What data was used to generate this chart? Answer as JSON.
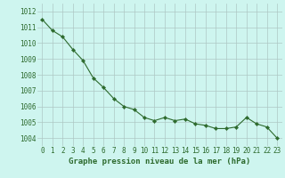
{
  "x": [
    0,
    1,
    2,
    3,
    4,
    5,
    6,
    7,
    8,
    9,
    10,
    11,
    12,
    13,
    14,
    15,
    16,
    17,
    18,
    19,
    20,
    21,
    22,
    23
  ],
  "y": [
    1011.5,
    1010.8,
    1010.4,
    1009.6,
    1008.9,
    1007.8,
    1007.2,
    1006.5,
    1006.0,
    1005.8,
    1005.3,
    1005.1,
    1005.3,
    1005.1,
    1005.2,
    1004.9,
    1004.8,
    1004.6,
    1004.6,
    1004.7,
    1005.3,
    1004.9,
    1004.7,
    1004.0
  ],
  "line_color": "#2d6a2d",
  "marker": "D",
  "marker_size": 2.2,
  "bg_color": "#cef5ef",
  "grid_color": "#adc8c4",
  "xlabel": "Graphe pression niveau de la mer (hPa)",
  "xlabel_fontsize": 6.5,
  "xlabel_color": "#2d6a2d",
  "tick_label_color": "#2d6a2d",
  "tick_fontsize": 5.5,
  "ylim": [
    1003.5,
    1012.5
  ],
  "yticks": [
    1004,
    1005,
    1006,
    1007,
    1008,
    1009,
    1010,
    1011,
    1012
  ],
  "xlim": [
    -0.5,
    23.5
  ],
  "xticks": [
    0,
    1,
    2,
    3,
    4,
    5,
    6,
    7,
    8,
    9,
    10,
    11,
    12,
    13,
    14,
    15,
    16,
    17,
    18,
    19,
    20,
    21,
    22,
    23
  ]
}
